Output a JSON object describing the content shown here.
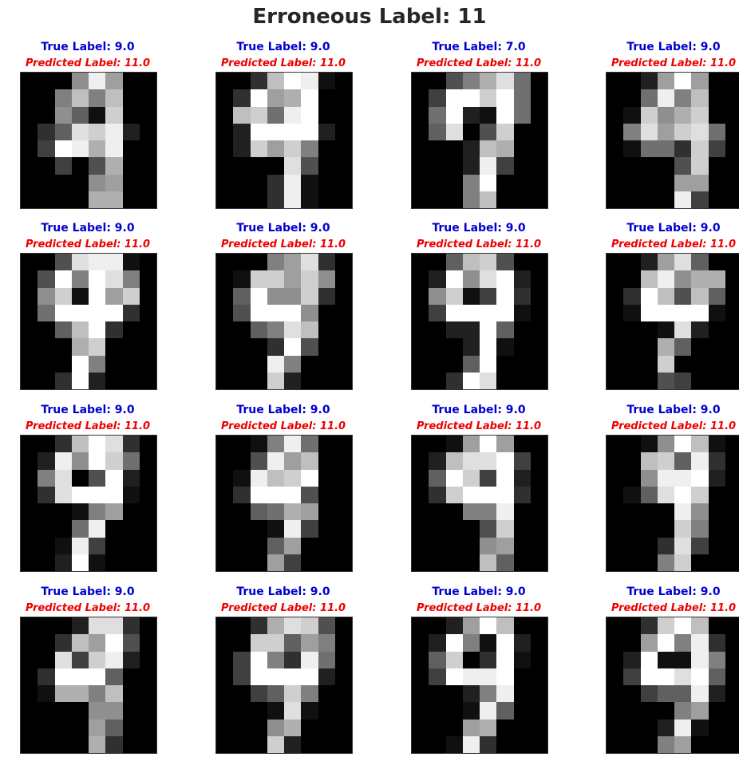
{
  "title": "Erroneous Label: 11",
  "colors": {
    "true_label": "#0000d0",
    "predicted_label": "#ee0000"
  },
  "panels": [
    {
      "true_label": "True Label: 9.0",
      "predicted_label": "Predicted Label: 11.0",
      "pixels": [
        [
          0,
          0,
          0,
          9,
          15,
          10,
          0,
          0
        ],
        [
          0,
          0,
          8,
          12,
          8,
          12,
          0,
          0
        ],
        [
          0,
          0,
          9,
          6,
          1,
          13,
          0,
          0
        ],
        [
          0,
          3,
          6,
          14,
          13,
          15,
          2,
          0
        ],
        [
          0,
          4,
          16,
          15,
          11,
          15,
          0,
          0
        ],
        [
          0,
          0,
          4,
          0,
          5,
          11,
          0,
          0
        ],
        [
          0,
          0,
          0,
          0,
          9,
          10,
          0,
          0
        ],
        [
          0,
          0,
          0,
          0,
          11,
          11,
          0,
          0
        ]
      ]
    },
    {
      "true_label": "True Label: 9.0",
      "predicted_label": "Predicted Label: 11.0",
      "pixels": [
        [
          0,
          0,
          3,
          12,
          16,
          15,
          1,
          0
        ],
        [
          0,
          3,
          16,
          10,
          11,
          16,
          0,
          0
        ],
        [
          0,
          12,
          13,
          7,
          15,
          16,
          0,
          0
        ],
        [
          0,
          2,
          16,
          16,
          16,
          16,
          2,
          0
        ],
        [
          0,
          2,
          13,
          10,
          13,
          8,
          0,
          0
        ],
        [
          0,
          0,
          0,
          0,
          14,
          5,
          0,
          0
        ],
        [
          0,
          0,
          0,
          3,
          15,
          1,
          0,
          0
        ],
        [
          0,
          0,
          0,
          3,
          15,
          1,
          0,
          0
        ]
      ]
    },
    {
      "true_label": "True Label: 7.0",
      "predicted_label": "Predicted Label: 11.0",
      "pixels": [
        [
          0,
          0,
          5,
          8,
          11,
          14,
          7,
          0
        ],
        [
          0,
          4,
          16,
          16,
          13,
          16,
          7,
          0
        ],
        [
          0,
          7,
          16,
          2,
          1,
          16,
          7,
          0
        ],
        [
          0,
          6,
          14,
          0,
          5,
          13,
          0,
          0
        ],
        [
          0,
          0,
          0,
          2,
          12,
          11,
          0,
          0
        ],
        [
          0,
          0,
          0,
          2,
          15,
          4,
          0,
          0
        ],
        [
          0,
          0,
          0,
          8,
          16,
          0,
          0,
          0
        ],
        [
          0,
          0,
          0,
          8,
          12,
          0,
          0,
          0
        ]
      ]
    },
    {
      "true_label": "True Label: 9.0",
      "predicted_label": "Predicted Label: 11.0",
      "pixels": [
        [
          0,
          0,
          2,
          10,
          16,
          10,
          0,
          0
        ],
        [
          0,
          0,
          7,
          15,
          8,
          12,
          0,
          0
        ],
        [
          0,
          1,
          13,
          9,
          11,
          13,
          0,
          0
        ],
        [
          0,
          8,
          14,
          10,
          13,
          14,
          7,
          0
        ],
        [
          0,
          1,
          7,
          7,
          3,
          13,
          4,
          0
        ],
        [
          0,
          0,
          0,
          0,
          5,
          13,
          0,
          0
        ],
        [
          0,
          0,
          0,
          0,
          10,
          10,
          0,
          0
        ],
        [
          0,
          0,
          0,
          0,
          15,
          4,
          0,
          0
        ]
      ]
    },
    {
      "true_label": "True Label: 9.0",
      "predicted_label": "Predicted Label: 11.0",
      "pixels": [
        [
          0,
          0,
          5,
          14,
          15,
          15,
          1,
          0
        ],
        [
          0,
          5,
          16,
          8,
          16,
          14,
          8,
          0
        ],
        [
          0,
          9,
          13,
          1,
          16,
          10,
          13,
          0
        ],
        [
          0,
          7,
          16,
          16,
          16,
          16,
          3,
          0
        ],
        [
          0,
          0,
          6,
          12,
          16,
          3,
          0,
          0
        ],
        [
          0,
          0,
          0,
          11,
          13,
          0,
          0,
          0
        ],
        [
          0,
          0,
          0,
          16,
          8,
          0,
          0,
          0
        ],
        [
          0,
          0,
          3,
          16,
          2,
          0,
          0,
          0
        ]
      ]
    },
    {
      "true_label": "True Label: 9.0",
      "predicted_label": "Predicted Label: 11.0",
      "pixels": [
        [
          0,
          0,
          0,
          8,
          10,
          14,
          3,
          0
        ],
        [
          0,
          1,
          13,
          13,
          10,
          13,
          9,
          0
        ],
        [
          0,
          6,
          16,
          9,
          9,
          13,
          3,
          0
        ],
        [
          0,
          5,
          16,
          16,
          16,
          9,
          0,
          0
        ],
        [
          0,
          0,
          6,
          8,
          14,
          12,
          0,
          0
        ],
        [
          0,
          0,
          0,
          3,
          16,
          5,
          0,
          0
        ],
        [
          0,
          0,
          0,
          15,
          8,
          0,
          0,
          0
        ],
        [
          0,
          0,
          0,
          13,
          2,
          0,
          0,
          0
        ]
      ]
    },
    {
      "true_label": "True Label: 9.0",
      "predicted_label": "Predicted Label: 11.0",
      "pixels": [
        [
          0,
          0,
          6,
          12,
          13,
          5,
          0,
          0
        ],
        [
          0,
          2,
          16,
          9,
          14,
          16,
          2,
          0
        ],
        [
          0,
          9,
          13,
          1,
          4,
          16,
          3,
          0
        ],
        [
          0,
          4,
          16,
          16,
          16,
          16,
          1,
          0
        ],
        [
          0,
          0,
          2,
          2,
          16,
          6,
          0,
          0
        ],
        [
          0,
          0,
          0,
          2,
          16,
          1,
          0,
          0
        ],
        [
          0,
          0,
          0,
          6,
          16,
          0,
          0,
          0
        ],
        [
          0,
          0,
          3,
          16,
          14,
          0,
          0,
          0
        ]
      ]
    },
    {
      "true_label": "True Label: 9.0",
      "predicted_label": "Predicted Label: 11.0",
      "pixels": [
        [
          0,
          0,
          2,
          10,
          14,
          6,
          0,
          0
        ],
        [
          0,
          0,
          12,
          15,
          9,
          11,
          11,
          0
        ],
        [
          0,
          3,
          16,
          12,
          5,
          12,
          6,
          0
        ],
        [
          0,
          1,
          16,
          16,
          16,
          16,
          1,
          0
        ],
        [
          0,
          0,
          0,
          1,
          14,
          2,
          0,
          0
        ],
        [
          0,
          0,
          0,
          11,
          6,
          0,
          0,
          0
        ],
        [
          0,
          0,
          0,
          13,
          0,
          0,
          0,
          0
        ],
        [
          0,
          0,
          0,
          5,
          4,
          0,
          0,
          0
        ]
      ]
    },
    {
      "true_label": "True Label: 9.0",
      "predicted_label": "Predicted Label: 11.0",
      "pixels": [
        [
          0,
          0,
          3,
          12,
          16,
          14,
          3,
          0
        ],
        [
          0,
          2,
          15,
          9,
          16,
          13,
          7,
          0
        ],
        [
          0,
          8,
          14,
          0,
          5,
          16,
          2,
          0
        ],
        [
          0,
          3,
          14,
          16,
          16,
          16,
          1,
          0
        ],
        [
          0,
          0,
          0,
          1,
          8,
          10,
          0,
          0
        ],
        [
          0,
          0,
          0,
          7,
          15,
          0,
          0,
          0
        ],
        [
          0,
          0,
          1,
          15,
          4,
          0,
          0,
          0
        ],
        [
          0,
          0,
          2,
          16,
          1,
          0,
          0,
          0
        ]
      ]
    },
    {
      "true_label": "True Label: 9.0",
      "predicted_label": "Predicted Label: 11.0",
      "pixels": [
        [
          0,
          0,
          1,
          8,
          15,
          7,
          0,
          0
        ],
        [
          0,
          0,
          5,
          15,
          10,
          12,
          0,
          0
        ],
        [
          0,
          1,
          15,
          12,
          13,
          16,
          0,
          0
        ],
        [
          0,
          3,
          16,
          16,
          16,
          5,
          0,
          0
        ],
        [
          0,
          0,
          6,
          7,
          11,
          10,
          0,
          0
        ],
        [
          0,
          0,
          0,
          1,
          15,
          4,
          0,
          0
        ],
        [
          0,
          0,
          0,
          6,
          10,
          0,
          0,
          0
        ],
        [
          0,
          0,
          0,
          10,
          4,
          0,
          0,
          0
        ]
      ]
    },
    {
      "true_label": "True Label: 9.0",
      "predicted_label": "Predicted Label: 11.0",
      "pixels": [
        [
          0,
          0,
          1,
          10,
          16,
          10,
          0,
          0
        ],
        [
          0,
          2,
          12,
          14,
          14,
          16,
          4,
          0
        ],
        [
          0,
          6,
          16,
          13,
          4,
          16,
          2,
          0
        ],
        [
          0,
          3,
          13,
          16,
          16,
          16,
          3,
          0
        ],
        [
          0,
          0,
          0,
          8,
          8,
          15,
          0,
          0
        ],
        [
          0,
          0,
          0,
          0,
          5,
          13,
          0,
          0
        ],
        [
          0,
          0,
          0,
          0,
          9,
          10,
          0,
          0
        ],
        [
          0,
          0,
          0,
          0,
          12,
          6,
          0,
          0
        ]
      ]
    },
    {
      "true_label": "True Label: 9.0",
      "predicted_label": "Predicted Label: 11.0",
      "pixels": [
        [
          0,
          0,
          1,
          9,
          16,
          12,
          1,
          0
        ],
        [
          0,
          0,
          12,
          13,
          6,
          15,
          3,
          0
        ],
        [
          0,
          0,
          9,
          15,
          15,
          16,
          2,
          0
        ],
        [
          0,
          1,
          6,
          14,
          16,
          13,
          0,
          0
        ],
        [
          0,
          0,
          0,
          0,
          15,
          9,
          0,
          0
        ],
        [
          0,
          0,
          0,
          0,
          13,
          8,
          0,
          0
        ],
        [
          0,
          0,
          0,
          3,
          14,
          4,
          0,
          0
        ],
        [
          0,
          0,
          0,
          8,
          13,
          0,
          0,
          0
        ]
      ]
    },
    {
      "true_label": "True Label: 9.0",
      "predicted_label": "Predicted Label: 11.0",
      "pixels": [
        [
          0,
          0,
          0,
          2,
          14,
          14,
          3,
          0
        ],
        [
          0,
          0,
          3,
          12,
          10,
          16,
          5,
          0
        ],
        [
          0,
          0,
          14,
          4,
          13,
          15,
          2,
          0
        ],
        [
          0,
          3,
          16,
          16,
          16,
          6,
          0,
          0
        ],
        [
          0,
          1,
          11,
          11,
          8,
          12,
          0,
          0
        ],
        [
          0,
          0,
          0,
          0,
          9,
          9,
          0,
          0
        ],
        [
          0,
          0,
          0,
          0,
          10,
          6,
          0,
          0
        ],
        [
          0,
          0,
          0,
          0,
          11,
          3,
          0,
          0
        ]
      ]
    },
    {
      "true_label": "True Label: 9.0",
      "predicted_label": "Predicted Label: 11.0",
      "pixels": [
        [
          0,
          0,
          3,
          11,
          14,
          13,
          5,
          0
        ],
        [
          0,
          0,
          13,
          13,
          6,
          10,
          8,
          0
        ],
        [
          0,
          4,
          16,
          8,
          3,
          15,
          7,
          0
        ],
        [
          0,
          4,
          16,
          16,
          16,
          16,
          2,
          0
        ],
        [
          0,
          0,
          4,
          6,
          13,
          8,
          0,
          0
        ],
        [
          0,
          0,
          0,
          1,
          14,
          1,
          0,
          0
        ],
        [
          0,
          0,
          0,
          9,
          11,
          0,
          0,
          0
        ],
        [
          0,
          0,
          0,
          13,
          2,
          0,
          0,
          0
        ]
      ]
    },
    {
      "true_label": "True Label: 9.0",
      "predicted_label": "Predicted Label: 11.0",
      "pixels": [
        [
          0,
          0,
          2,
          10,
          16,
          12,
          0,
          0
        ],
        [
          0,
          2,
          16,
          8,
          1,
          16,
          2,
          0
        ],
        [
          0,
          6,
          13,
          0,
          3,
          16,
          1,
          0
        ],
        [
          0,
          4,
          16,
          15,
          15,
          16,
          0,
          0
        ],
        [
          0,
          0,
          0,
          2,
          8,
          15,
          0,
          0
        ],
        [
          0,
          0,
          0,
          1,
          15,
          6,
          0,
          0
        ],
        [
          0,
          0,
          0,
          10,
          11,
          0,
          0,
          0
        ],
        [
          0,
          0,
          1,
          15,
          3,
          0,
          0,
          0
        ]
      ]
    },
    {
      "true_label": "True Label: 9.0",
      "predicted_label": "Predicted Label: 11.0",
      "pixels": [
        [
          0,
          0,
          3,
          13,
          16,
          12,
          0,
          0
        ],
        [
          0,
          0,
          10,
          16,
          8,
          15,
          3,
          0
        ],
        [
          0,
          2,
          16,
          1,
          1,
          15,
          8,
          0
        ],
        [
          0,
          4,
          16,
          16,
          14,
          16,
          6,
          0
        ],
        [
          0,
          0,
          4,
          6,
          6,
          15,
          2,
          0
        ],
        [
          0,
          0,
          0,
          0,
          8,
          10,
          0,
          0
        ],
        [
          0,
          0,
          0,
          2,
          15,
          1,
          0,
          0
        ],
        [
          0,
          0,
          0,
          8,
          10,
          0,
          0,
          0
        ]
      ]
    }
  ]
}
